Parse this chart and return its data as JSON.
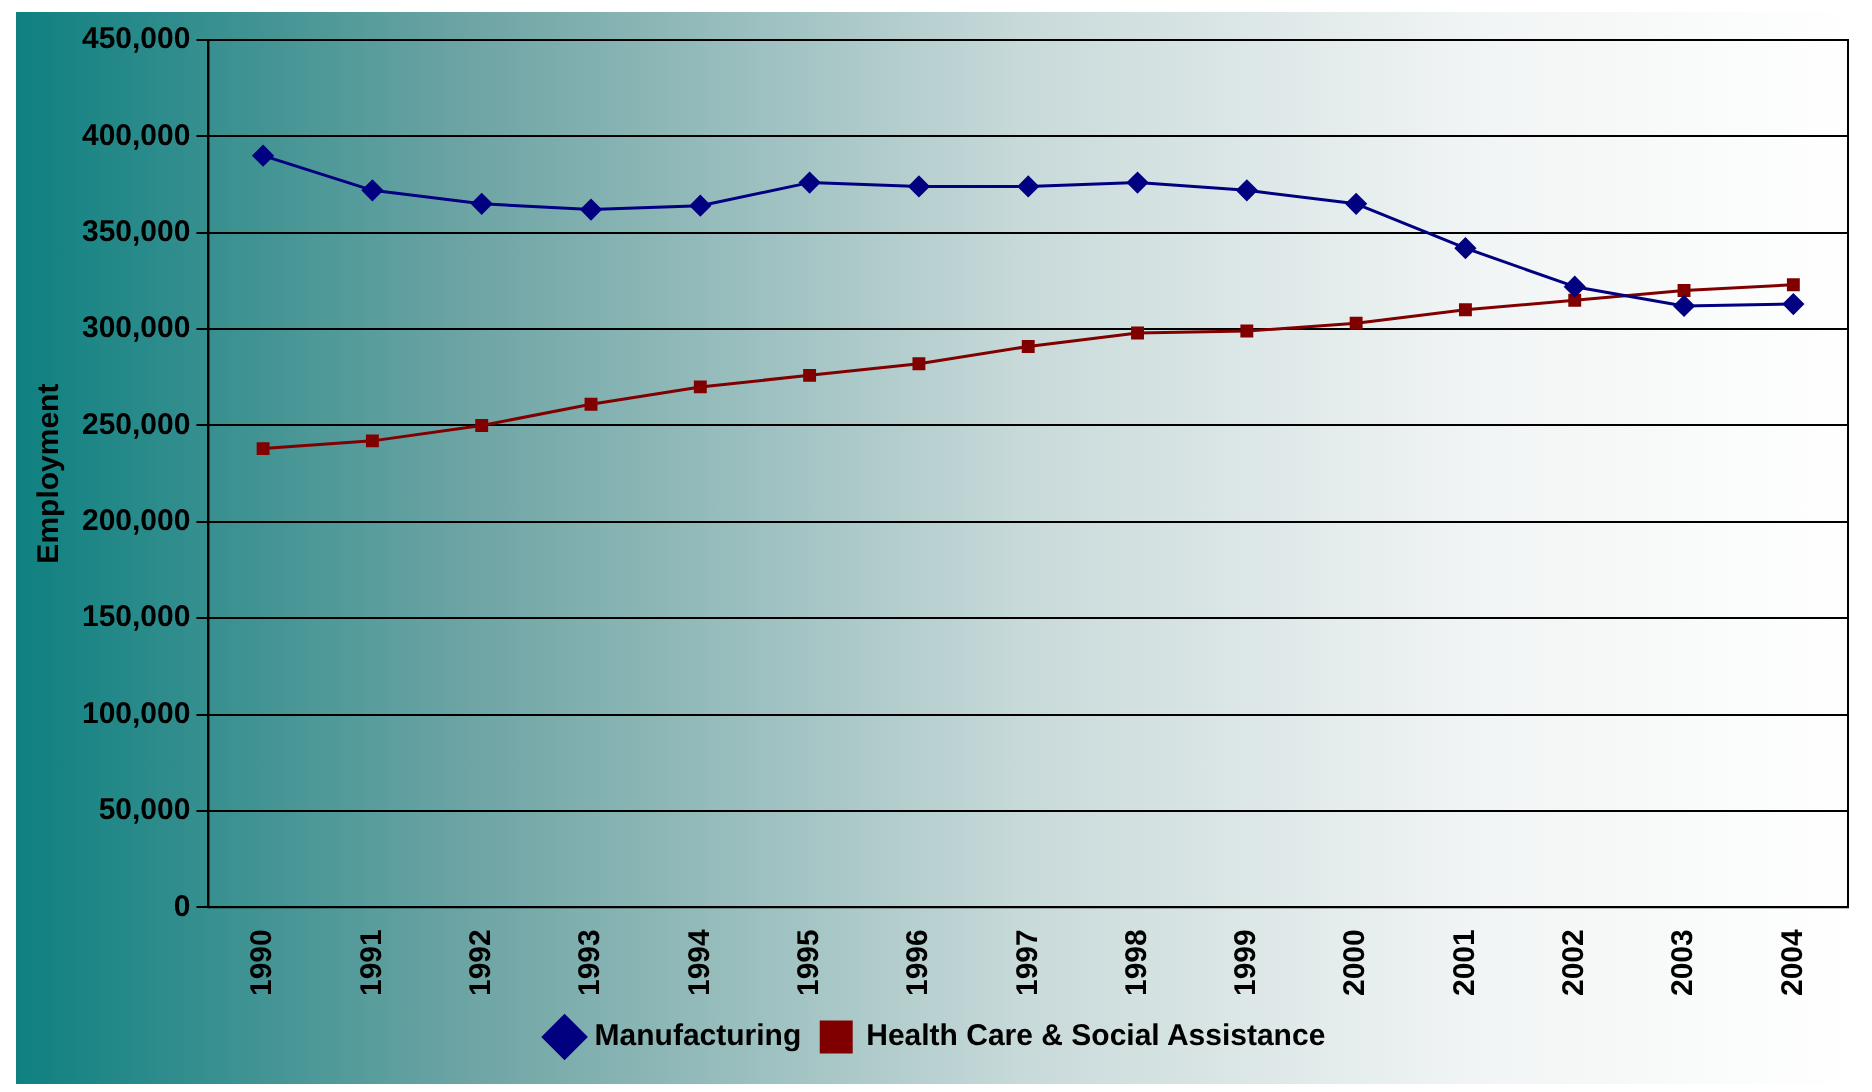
{
  "chart_data": {
    "type": "line",
    "ylabel": "Employment",
    "categories": [
      "1990",
      "1991",
      "1992",
      "1993",
      "1994",
      "1995",
      "1996",
      "1997",
      "1998",
      "1999",
      "2000",
      "2001",
      "2002",
      "2003",
      "2004"
    ],
    "series": [
      {
        "name": "Manufacturing",
        "color": "#000080",
        "marker": "diamond",
        "values": [
          390000,
          372000,
          365000,
          362000,
          364000,
          376000,
          374000,
          374000,
          376000,
          372000,
          365000,
          342000,
          322000,
          312000,
          313000
        ]
      },
      {
        "name": "Health Care & Social Assistance",
        "color": "#800000",
        "marker": "square",
        "values": [
          238000,
          242000,
          250000,
          261000,
          270000,
          276000,
          282000,
          291000,
          298000,
          299000,
          303000,
          310000,
          315000,
          320000,
          323000
        ]
      }
    ],
    "ylim": [
      0,
      450000
    ],
    "yticks": [
      0,
      {
        "value": 50000,
        "label": "50,000"
      },
      {
        "value": 100000,
        "label": "100,000"
      },
      {
        "value": 150000,
        "label": "150,000"
      },
      {
        "value": 200000,
        "label": "200,000"
      },
      {
        "value": 250000,
        "label": "250,000"
      },
      {
        "value": 300000,
        "label": "300,000"
      },
      {
        "value": 350000,
        "label": "350,000"
      },
      {
        "value": 400000,
        "label": "400,000"
      },
      {
        "value": 450000,
        "label": "450,000"
      }
    ],
    "grid": "y",
    "legend": "bottom",
    "line_style": "solid"
  }
}
